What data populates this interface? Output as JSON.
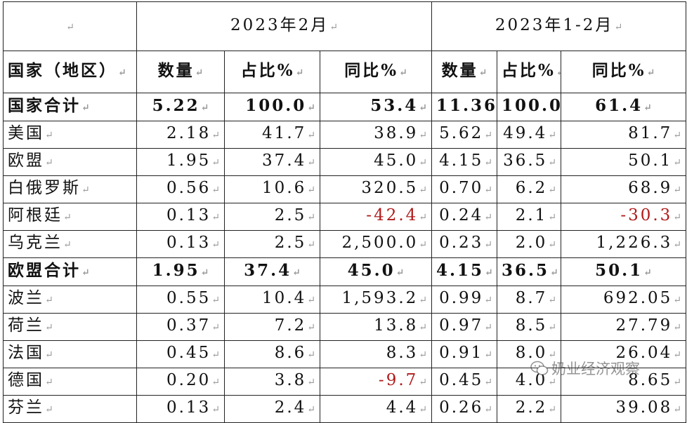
{
  "header": {
    "blank": "",
    "period_feb": "2023年2月",
    "period_jan_feb": "2023年1-2月",
    "col_country": "国家（地区）",
    "col_quantity": "数量",
    "col_share": "占比%",
    "col_yoy": "同比%"
  },
  "rows": [
    {
      "name": "国家合计",
      "feb_qty": "5.22",
      "feb_share": "100.0",
      "feb_yoy": "53.4",
      "ytd_qty": "11.36",
      "ytd_share": "100.0",
      "ytd_yoy": "61.4"
    },
    {
      "name": "美国",
      "feb_qty": "2.18",
      "feb_share": "41.7",
      "feb_yoy": "38.9",
      "ytd_qty": "5.62",
      "ytd_share": "49.4",
      "ytd_yoy": "81.7"
    },
    {
      "name": "欧盟",
      "feb_qty": "1.95",
      "feb_share": "37.4",
      "feb_yoy": "45.0",
      "ytd_qty": "4.15",
      "ytd_share": "36.5",
      "ytd_yoy": "50.1"
    },
    {
      "name": "白俄罗斯",
      "feb_qty": "0.56",
      "feb_share": "10.6",
      "feb_yoy": "320.5",
      "ytd_qty": "0.70",
      "ytd_share": "6.2",
      "ytd_yoy": "68.9"
    },
    {
      "name": "阿根廷",
      "feb_qty": "0.13",
      "feb_share": "2.5",
      "feb_yoy": "-42.4",
      "ytd_qty": "0.24",
      "ytd_share": "2.1",
      "ytd_yoy": "-30.3"
    },
    {
      "name": "乌克兰",
      "feb_qty": "0.13",
      "feb_share": "2.5",
      "feb_yoy": "2,500.0",
      "ytd_qty": "0.23",
      "ytd_share": "2.0",
      "ytd_yoy": "1,226.3"
    },
    {
      "name": "欧盟合计",
      "feb_qty": "1.95",
      "feb_share": "37.4",
      "feb_yoy": "45.0",
      "ytd_qty": "4.15",
      "ytd_share": "36.5",
      "ytd_yoy": "50.1"
    },
    {
      "name": "波兰",
      "feb_qty": "0.55",
      "feb_share": "10.4",
      "feb_yoy": "1,593.2",
      "ytd_qty": "0.99",
      "ytd_share": "8.7",
      "ytd_yoy": "692.05"
    },
    {
      "name": "荷兰",
      "feb_qty": "0.37",
      "feb_share": "7.2",
      "feb_yoy": "13.8",
      "ytd_qty": "0.97",
      "ytd_share": "8.5",
      "ytd_yoy": "27.79"
    },
    {
      "name": "法国",
      "feb_qty": "0.45",
      "feb_share": "8.6",
      "feb_yoy": "8.3",
      "ytd_qty": "0.91",
      "ytd_share": "8.0",
      "ytd_yoy": "26.04"
    },
    {
      "name": "德国",
      "feb_qty": "0.20",
      "feb_share": "3.8",
      "feb_yoy": "-9.7",
      "ytd_qty": "0.45",
      "ytd_share": "4.0",
      "ytd_yoy": "8.65"
    },
    {
      "name": "芬兰",
      "feb_qty": "0.13",
      "feb_share": "2.4",
      "feb_yoy": "4.4",
      "ytd_qty": "0.26",
      "ytd_share": "2.2",
      "ytd_yoy": "39.08"
    }
  ],
  "watermark": {
    "text": "奶业经济观察",
    "icon": "wechat-icon"
  },
  "colors": {
    "negative": "#b01a1a",
    "border": "#222222"
  }
}
